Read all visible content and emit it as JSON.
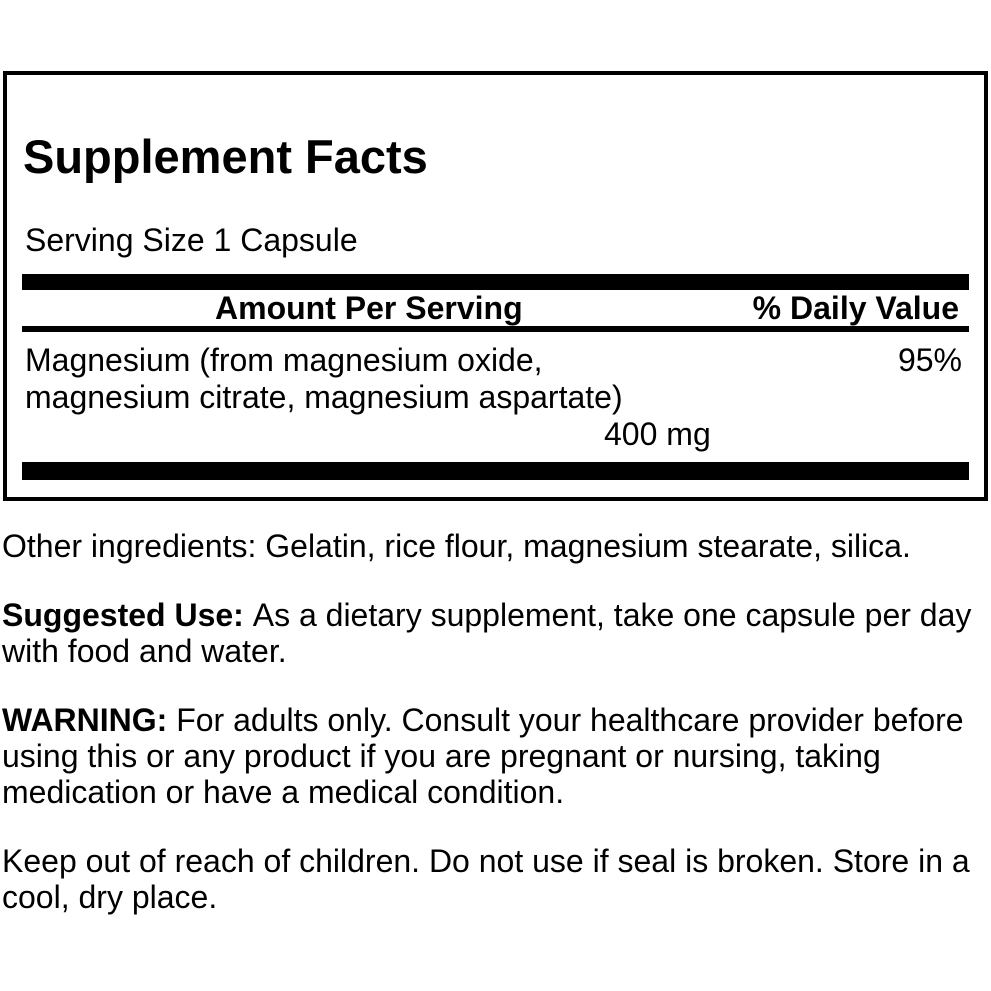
{
  "supplement_facts": {
    "title": "Supplement Facts",
    "serving_size": "Serving Size 1 Capsule",
    "columns": {
      "amount": "Amount Per Serving",
      "daily_value": "% Daily Value"
    },
    "nutrients": [
      {
        "name": "Magnesium (from magnesium oxide, magnesium citrate, magnesium aspartate)",
        "amount": "400 mg",
        "daily_value": "95%"
      }
    ]
  },
  "info_sections": {
    "other_ingredients": {
      "text": "Other ingredients: Gelatin, rice flour, magnesium stearate, silica."
    },
    "suggested_use": {
      "lead": "Suggested Use:",
      "text": "As a dietary supplement, take one capsule per day with food and water."
    },
    "warning": {
      "lead": "WARNING:",
      "text": "For adults only. Consult your healthcare provider before using this or any product if you are pregnant or nursing, taking medication or have a medical condition."
    },
    "storage": {
      "text": "Keep out of reach of children. Do not use if seal is broken. Store in a cool, dry place."
    }
  },
  "colors": {
    "text": "#000000",
    "background": "#ffffff",
    "rule": "#000000"
  }
}
